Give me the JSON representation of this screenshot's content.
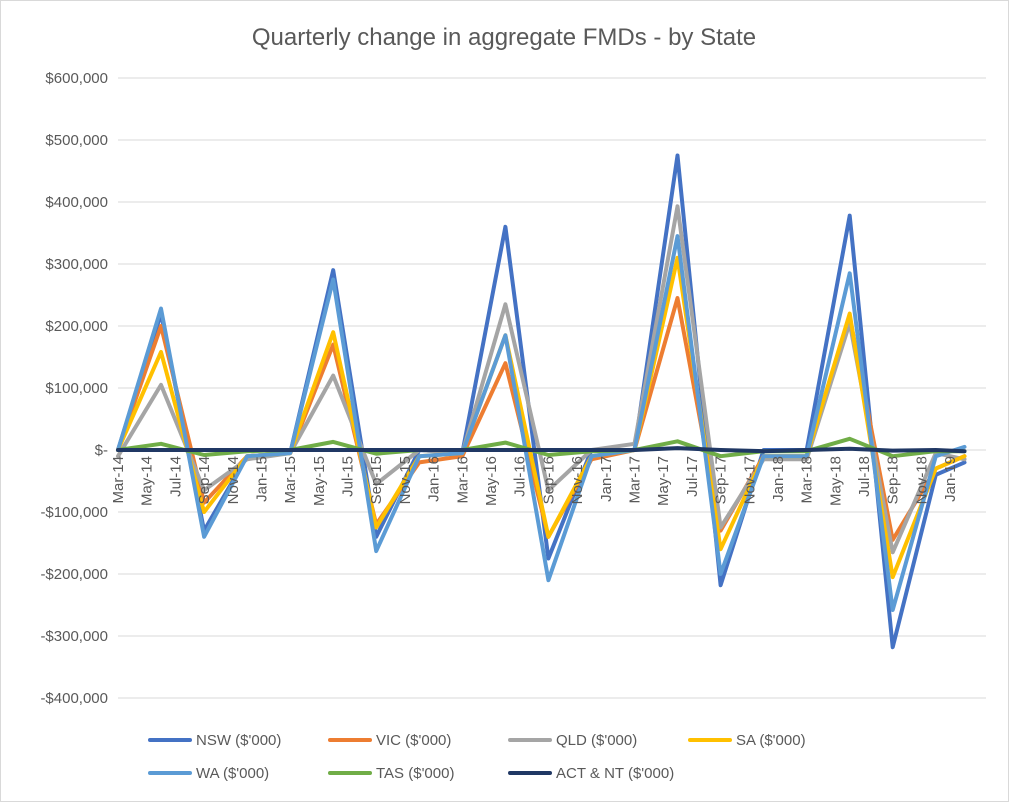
{
  "chart_data": {
    "type": "line",
    "title": "Quarterly change in aggregate FMDs - by State",
    "ylim": [
      -400000,
      600000
    ],
    "ytick_labels": [
      "$600,000",
      "$500,000",
      "$400,000",
      "$300,000",
      "$200,000",
      "$100,000",
      "$-",
      "-$100,000",
      "-$200,000",
      "-$300,000",
      "-$400,000"
    ],
    "ytick_values": [
      600000,
      500000,
      400000,
      300000,
      200000,
      100000,
      0,
      -100000,
      -200000,
      -300000,
      -400000
    ],
    "x_tick_labels": [
      "Mar-14",
      "May-14",
      "Jul-14",
      "Sep-14",
      "Nov-14",
      "Jan-15",
      "Mar-15",
      "May-15",
      "Jul-15",
      "Sep-15",
      "Nov-15",
      "Jan-16",
      "Mar-16",
      "May-16",
      "Jul-16",
      "Sep-16",
      "Nov-16",
      "Jan-17",
      "Mar-17",
      "May-17",
      "Jul-17",
      "Sep-17",
      "Nov-17",
      "Jan-18",
      "Mar-18",
      "May-18",
      "Jul-18",
      "Sep-18",
      "Nov-18",
      "Jan-19"
    ],
    "x": [
      "Mar-14",
      "Jun-14",
      "Sep-14",
      "Dec-14",
      "Mar-15",
      "Jun-15",
      "Sep-15",
      "Dec-15",
      "Mar-16",
      "Jun-16",
      "Sep-16",
      "Dec-16",
      "Mar-17",
      "Jun-17",
      "Sep-17",
      "Dec-17",
      "Mar-18",
      "Jun-18",
      "Sep-18",
      "Dec-18",
      "Feb-19"
    ],
    "x_months": [
      0,
      3,
      6,
      9,
      12,
      15,
      18,
      21,
      24,
      27,
      30,
      33,
      36,
      39,
      42,
      45,
      48,
      51,
      54,
      57,
      59
    ],
    "grid": true,
    "legend_position": "bottom",
    "series": [
      {
        "name": "NSW ($'000)",
        "color": "#4472c4",
        "values": [
          0,
          220000,
          -130000,
          -10000,
          -5000,
          290000,
          -140000,
          0,
          -5000,
          360000,
          -175000,
          0,
          0,
          475000,
          -218000,
          0,
          0,
          378000,
          -318000,
          -40000,
          -20000
        ]
      },
      {
        "name": "VIC ($'000)",
        "color": "#ed7d31",
        "values": [
          0,
          200000,
          -85000,
          -10000,
          -5000,
          170000,
          -120000,
          -20000,
          -10000,
          140000,
          -140000,
          -15000,
          0,
          245000,
          -130000,
          -10000,
          -10000,
          215000,
          -145000,
          -30000,
          -10000
        ]
      },
      {
        "name": "QLD ($'000)",
        "color": "#a5a5a5",
        "values": [
          -10000,
          105000,
          -65000,
          -15000,
          -5000,
          120000,
          -55000,
          0,
          -5000,
          235000,
          -65000,
          0,
          10000,
          393000,
          -125000,
          -15000,
          -15000,
          205000,
          -165000,
          -5000,
          -15000
        ]
      },
      {
        "name": "SA ($'000)",
        "color": "#ffc000",
        "values": [
          0,
          158000,
          -100000,
          -10000,
          -5000,
          190000,
          -125000,
          -10000,
          -5000,
          185000,
          -140000,
          -10000,
          0,
          310000,
          -160000,
          -10000,
          -10000,
          220000,
          -205000,
          -30000,
          -10000
        ]
      },
      {
        "name": "WA ($'000)",
        "color": "#5b9bd5",
        "values": [
          0,
          228000,
          -140000,
          -10000,
          -5000,
          275000,
          -163000,
          -10000,
          -5000,
          185000,
          -210000,
          -10000,
          0,
          345000,
          -200000,
          -10000,
          -10000,
          285000,
          -258000,
          -10000,
          5000
        ]
      },
      {
        "name": "TAS ($'000)",
        "color": "#70ad47",
        "values": [
          0,
          10000,
          -8000,
          -2000,
          0,
          13000,
          -6000,
          0,
          0,
          12000,
          -8000,
          -2000,
          0,
          14000,
          -10000,
          -2000,
          -2000,
          18000,
          -10000,
          -2000,
          -2000
        ]
      },
      {
        "name": "ACT & NT ($'000)",
        "color": "#203864",
        "values": [
          0,
          0,
          0,
          0,
          0,
          0,
          0,
          0,
          0,
          0,
          0,
          0,
          0,
          3000,
          0,
          -2000,
          0,
          2000,
          -1000,
          0,
          -2000
        ]
      }
    ]
  }
}
